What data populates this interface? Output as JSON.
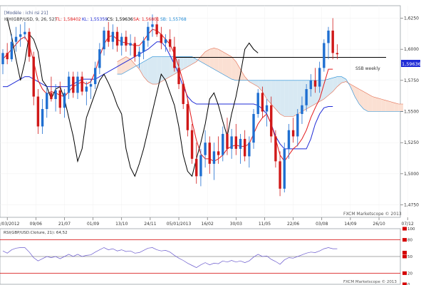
{
  "header": {
    "template_label": "[Modèle : ichi rsi 21]",
    "indicator_title": "ICH(GBP/USD, 9, 26, 52)",
    "tl": "TL: 1,58402",
    "kl": "KL: 1,55359",
    "cs": "CS: 1,59636",
    "sa": "SA: 1,56801",
    "sb": "SB: 1,55768",
    "tl_color": "#e31a1c",
    "kl_color": "#1f2bd6",
    "cs_color": "#000000",
    "sa_color": "#e31a1c",
    "sb_color": "#1f8bd6"
  },
  "price_axis": {
    "ticks": [
      "1,6250",
      "1,6000",
      "1,5750",
      "1,5500",
      "1,5250",
      "1,5000",
      "1,4750"
    ],
    "current_price_label": "1,59636"
  },
  "annotation": {
    "ssb_weekly": "SSB weekly"
  },
  "x_axis": {
    "labels": [
      "27/03/2012",
      "09/06",
      "21/07",
      "01/09",
      "13/10",
      "24/11",
      "05/01/2013",
      "16/02",
      "30/03",
      "11/05",
      "22/06",
      "03/08",
      "14/09",
      "26/10",
      "07/12"
    ]
  },
  "watermark": {
    "main": "FXCM Marketscope © 2013",
    "rsi": "FXCM Marketscope © 2013"
  },
  "rsi_panel": {
    "title": "RSI(GBP/USD.Cloture, 21): 64,52",
    "ticks": [
      "100",
      "80",
      "50",
      "20",
      "0"
    ],
    "current_value": "64,52"
  },
  "chart_data": {
    "type": "candlestick",
    "title": "ICH(GBP/USD, 9, 26, 52)",
    "ylim": [
      1.465,
      1.635
    ],
    "x_range_weeks": [
      0,
      91
    ],
    "price_levels": {
      "ssb_weekly": 1.5935
    },
    "current_price": 1.59636,
    "candles": [
      {
        "o": 1.588,
        "h": 1.6,
        "l": 1.58,
        "c": 1.597
      },
      {
        "o": 1.597,
        "h": 1.605,
        "l": 1.588,
        "c": 1.592
      },
      {
        "o": 1.592,
        "h": 1.612,
        "l": 1.59,
        "c": 1.606
      },
      {
        "o": 1.606,
        "h": 1.618,
        "l": 1.598,
        "c": 1.61
      },
      {
        "o": 1.61,
        "h": 1.62,
        "l": 1.602,
        "c": 1.612
      },
      {
        "o": 1.612,
        "h": 1.622,
        "l": 1.608,
        "c": 1.614
      },
      {
        "o": 1.614,
        "h": 1.617,
        "l": 1.59,
        "c": 1.594
      },
      {
        "o": 1.594,
        "h": 1.598,
        "l": 1.555,
        "c": 1.562
      },
      {
        "o": 1.562,
        "h": 1.568,
        "l": 1.532,
        "c": 1.538
      },
      {
        "o": 1.538,
        "h": 1.56,
        "l": 1.532,
        "c": 1.552
      },
      {
        "o": 1.552,
        "h": 1.57,
        "l": 1.545,
        "c": 1.565
      },
      {
        "o": 1.565,
        "h": 1.578,
        "l": 1.558,
        "c": 1.56
      },
      {
        "o": 1.56,
        "h": 1.572,
        "l": 1.55,
        "c": 1.567
      },
      {
        "o": 1.567,
        "h": 1.574,
        "l": 1.548,
        "c": 1.553
      },
      {
        "o": 1.553,
        "h": 1.568,
        "l": 1.545,
        "c": 1.565
      },
      {
        "o": 1.565,
        "h": 1.582,
        "l": 1.56,
        "c": 1.578
      },
      {
        "o": 1.578,
        "h": 1.582,
        "l": 1.561,
        "c": 1.565
      },
      {
        "o": 1.565,
        "h": 1.582,
        "l": 1.56,
        "c": 1.578
      },
      {
        "o": 1.578,
        "h": 1.582,
        "l": 1.563,
        "c": 1.566
      },
      {
        "o": 1.566,
        "h": 1.574,
        "l": 1.555,
        "c": 1.57
      },
      {
        "o": 1.57,
        "h": 1.576,
        "l": 1.56,
        "c": 1.572
      },
      {
        "o": 1.572,
        "h": 1.59,
        "l": 1.568,
        "c": 1.585
      },
      {
        "o": 1.585,
        "h": 1.605,
        "l": 1.58,
        "c": 1.6
      },
      {
        "o": 1.6,
        "h": 1.618,
        "l": 1.595,
        "c": 1.615
      },
      {
        "o": 1.615,
        "h": 1.622,
        "l": 1.602,
        "c": 1.606
      },
      {
        "o": 1.606,
        "h": 1.62,
        "l": 1.6,
        "c": 1.614
      },
      {
        "o": 1.614,
        "h": 1.618,
        "l": 1.598,
        "c": 1.603
      },
      {
        "o": 1.603,
        "h": 1.613,
        "l": 1.595,
        "c": 1.61
      },
      {
        "o": 1.61,
        "h": 1.615,
        "l": 1.598,
        "c": 1.603
      },
      {
        "o": 1.603,
        "h": 1.612,
        "l": 1.595,
        "c": 1.605
      },
      {
        "o": 1.605,
        "h": 1.61,
        "l": 1.59,
        "c": 1.594
      },
      {
        "o": 1.594,
        "h": 1.602,
        "l": 1.585,
        "c": 1.598
      },
      {
        "o": 1.598,
        "h": 1.61,
        "l": 1.592,
        "c": 1.607
      },
      {
        "o": 1.607,
        "h": 1.622,
        "l": 1.602,
        "c": 1.618
      },
      {
        "o": 1.618,
        "h": 1.628,
        "l": 1.61,
        "c": 1.62
      },
      {
        "o": 1.62,
        "h": 1.626,
        "l": 1.61,
        "c": 1.612
      },
      {
        "o": 1.612,
        "h": 1.618,
        "l": 1.6,
        "c": 1.605
      },
      {
        "o": 1.605,
        "h": 1.612,
        "l": 1.598,
        "c": 1.608
      },
      {
        "o": 1.608,
        "h": 1.616,
        "l": 1.598,
        "c": 1.602
      },
      {
        "o": 1.602,
        "h": 1.61,
        "l": 1.582,
        "c": 1.585
      },
      {
        "o": 1.585,
        "h": 1.592,
        "l": 1.568,
        "c": 1.572
      },
      {
        "o": 1.572,
        "h": 1.575,
        "l": 1.552,
        "c": 1.556
      },
      {
        "o": 1.556,
        "h": 1.56,
        "l": 1.53,
        "c": 1.535
      },
      {
        "o": 1.535,
        "h": 1.54,
        "l": 1.508,
        "c": 1.512
      },
      {
        "o": 1.512,
        "h": 1.525,
        "l": 1.492,
        "c": 1.498
      },
      {
        "o": 1.498,
        "h": 1.52,
        "l": 1.49,
        "c": 1.515
      },
      {
        "o": 1.515,
        "h": 1.535,
        "l": 1.505,
        "c": 1.525
      },
      {
        "o": 1.525,
        "h": 1.53,
        "l": 1.5,
        "c": 1.508
      },
      {
        "o": 1.508,
        "h": 1.525,
        "l": 1.495,
        "c": 1.518
      },
      {
        "o": 1.518,
        "h": 1.53,
        "l": 1.508,
        "c": 1.515
      },
      {
        "o": 1.515,
        "h": 1.538,
        "l": 1.51,
        "c": 1.532
      },
      {
        "o": 1.532,
        "h": 1.545,
        "l": 1.515,
        "c": 1.52
      },
      {
        "o": 1.52,
        "h": 1.536,
        "l": 1.512,
        "c": 1.53
      },
      {
        "o": 1.53,
        "h": 1.54,
        "l": 1.515,
        "c": 1.52
      },
      {
        "o": 1.52,
        "h": 1.532,
        "l": 1.508,
        "c": 1.528
      },
      {
        "o": 1.528,
        "h": 1.535,
        "l": 1.51,
        "c": 1.514
      },
      {
        "o": 1.514,
        "h": 1.53,
        "l": 1.505,
        "c": 1.525
      },
      {
        "o": 1.525,
        "h": 1.552,
        "l": 1.52,
        "c": 1.548
      },
      {
        "o": 1.548,
        "h": 1.568,
        "l": 1.545,
        "c": 1.565
      },
      {
        "o": 1.565,
        "h": 1.57,
        "l": 1.545,
        "c": 1.55
      },
      {
        "o": 1.55,
        "h": 1.56,
        "l": 1.538,
        "c": 1.555
      },
      {
        "o": 1.555,
        "h": 1.562,
        "l": 1.525,
        "c": 1.53
      },
      {
        "o": 1.53,
        "h": 1.535,
        "l": 1.505,
        "c": 1.51
      },
      {
        "o": 1.51,
        "h": 1.518,
        "l": 1.482,
        "c": 1.488
      },
      {
        "o": 1.488,
        "h": 1.525,
        "l": 1.485,
        "c": 1.52
      },
      {
        "o": 1.52,
        "h": 1.54,
        "l": 1.512,
        "c": 1.535
      },
      {
        "o": 1.535,
        "h": 1.545,
        "l": 1.525,
        "c": 1.53
      },
      {
        "o": 1.53,
        "h": 1.552,
        "l": 1.522,
        "c": 1.548
      },
      {
        "o": 1.548,
        "h": 1.562,
        "l": 1.54,
        "c": 1.555
      },
      {
        "o": 1.555,
        "h": 1.572,
        "l": 1.55,
        "c": 1.568
      },
      {
        "o": 1.568,
        "h": 1.58,
        "l": 1.562,
        "c": 1.575
      },
      {
        "o": 1.575,
        "h": 1.585,
        "l": 1.565,
        "c": 1.57
      },
      {
        "o": 1.57,
        "h": 1.59,
        "l": 1.565,
        "c": 1.585
      },
      {
        "o": 1.585,
        "h": 1.608,
        "l": 1.582,
        "c": 1.605
      },
      {
        "o": 1.605,
        "h": 1.618,
        "l": 1.592,
        "c": 1.615
      },
      {
        "o": 1.615,
        "h": 1.625,
        "l": 1.592,
        "c": 1.597
      },
      {
        "o": 1.597,
        "h": 1.604,
        "l": 1.592,
        "c": 1.596
      }
    ],
    "tenkan": [
      1.592,
      1.596,
      1.6,
      1.604,
      1.608,
      1.61,
      1.604,
      1.59,
      1.575,
      1.568,
      1.564,
      1.566,
      1.565,
      1.563,
      1.562,
      1.566,
      1.57,
      1.572,
      1.574,
      1.572,
      1.574,
      1.582,
      1.594,
      1.604,
      1.61,
      1.611,
      1.608,
      1.606,
      1.605,
      1.604,
      1.603,
      1.603,
      1.607,
      1.612,
      1.616,
      1.615,
      1.612,
      1.608,
      1.604,
      1.596,
      1.586,
      1.574,
      1.56,
      1.542,
      1.527,
      1.516,
      1.512,
      1.512,
      1.51,
      1.512,
      1.515,
      1.52,
      1.522,
      1.523,
      1.522,
      1.522,
      1.524,
      1.532,
      1.54,
      1.545,
      1.548,
      1.54,
      1.528,
      1.515,
      1.51,
      1.515,
      1.52,
      1.523,
      1.528,
      1.535,
      1.545,
      1.553,
      1.56,
      1.572,
      1.584,
      1.584
    ],
    "kijun": [
      1.57,
      1.57,
      1.572,
      1.574,
      1.576,
      1.578,
      1.578,
      1.576,
      1.574,
      1.572,
      1.57,
      1.57,
      1.57,
      1.57,
      1.57,
      1.57,
      1.572,
      1.574,
      1.576,
      1.576,
      1.576,
      1.576,
      1.578,
      1.58,
      1.582,
      1.584,
      1.586,
      1.588,
      1.59,
      1.592,
      1.594,
      1.596,
      1.598,
      1.6,
      1.603,
      1.606,
      1.606,
      1.602,
      1.595,
      1.588,
      1.58,
      1.57,
      1.562,
      1.558,
      1.556,
      1.556,
      1.556,
      1.556,
      1.556,
      1.556,
      1.556,
      1.556,
      1.556,
      1.556,
      1.556,
      1.556,
      1.556,
      1.556,
      1.555,
      1.552,
      1.548,
      1.54,
      1.53,
      1.524,
      1.52,
      1.52,
      1.52,
      1.52,
      1.52,
      1.52,
      1.528,
      1.54,
      1.548,
      1.553,
      1.554,
      1.554
    ],
    "chikou_start": 1,
    "chikou": [
      1.625,
      1.61,
      1.592,
      1.575,
      1.59,
      1.612,
      1.608,
      1.598,
      1.575,
      1.57,
      1.56,
      1.568,
      1.57,
      1.56,
      1.545,
      1.53,
      1.51,
      1.52,
      1.545,
      1.555,
      1.565,
      1.575,
      1.58,
      1.573,
      1.565,
      1.555,
      1.548,
      1.52,
      1.505,
      1.498,
      1.508,
      1.52,
      1.535,
      1.55,
      1.565,
      1.58,
      1.575,
      1.565,
      1.555,
      1.538,
      1.515,
      1.502,
      1.498,
      1.512,
      1.525,
      1.54,
      1.56,
      1.565,
      1.555,
      1.542,
      1.53,
      1.548,
      1.562,
      1.58,
      1.6,
      1.605,
      1.6,
      1.597
    ],
    "senkou_start": 26,
    "senkou_a": [
      1.59,
      1.592,
      1.594,
      1.592,
      1.588,
      1.584,
      1.578,
      1.574,
      1.572,
      1.572,
      1.574,
      1.576,
      1.578,
      1.58,
      1.582,
      1.584,
      1.586,
      1.588,
      1.59,
      1.594,
      1.598,
      1.6,
      1.601,
      1.6,
      1.598,
      1.596,
      1.594,
      1.59,
      1.584,
      1.578,
      1.574,
      1.572,
      1.57,
      1.566,
      1.56,
      1.556,
      1.552,
      1.548,
      1.546,
      1.546,
      1.546,
      1.548,
      1.55,
      1.552,
      1.554,
      1.556,
      1.558,
      1.56,
      1.563,
      1.566,
      1.57,
      1.573,
      1.574,
      1.572,
      1.57,
      1.568,
      1.566,
      1.564,
      1.562,
      1.561,
      1.56,
      1.559,
      1.558,
      1.557,
      1.556,
      1.556
    ],
    "senkou_b": [
      1.58,
      1.58,
      1.582,
      1.584,
      1.586,
      1.588,
      1.59,
      1.592,
      1.594,
      1.594,
      1.594,
      1.594,
      1.594,
      1.594,
      1.594,
      1.594,
      1.594,
      1.594,
      1.592,
      1.59,
      1.588,
      1.586,
      1.584,
      1.582,
      1.58,
      1.578,
      1.576,
      1.575,
      1.575,
      1.575,
      1.575,
      1.575,
      1.575,
      1.575,
      1.575,
      1.575,
      1.575,
      1.575,
      1.575,
      1.575,
      1.575,
      1.575,
      1.575,
      1.575,
      1.575,
      1.575,
      1.575,
      1.575,
      1.576,
      1.577,
      1.578,
      1.578,
      1.576,
      1.57,
      1.562,
      1.556,
      1.552,
      1.55,
      1.55,
      1.55,
      1.55,
      1.55,
      1.55,
      1.55,
      1.55,
      1.55
    ],
    "rsi": {
      "ylim": [
        0,
        100
      ],
      "levels": [
        20,
        50,
        80
      ],
      "current": 64.52,
      "values": [
        60,
        56,
        62,
        65,
        66,
        66,
        58,
        48,
        42,
        46,
        50,
        48,
        50,
        46,
        50,
        54,
        50,
        54,
        50,
        52,
        53,
        58,
        62,
        66,
        62,
        64,
        60,
        62,
        59,
        60,
        56,
        57,
        61,
        65,
        66,
        62,
        60,
        61,
        58,
        52,
        47,
        43,
        38,
        34,
        30,
        35,
        39,
        35,
        38,
        37,
        42,
        40,
        43,
        40,
        42,
        39,
        42,
        49,
        54,
        50,
        51,
        45,
        41,
        36,
        44,
        48,
        47,
        50,
        53,
        56,
        58,
        57,
        60,
        64,
        66,
        64,
        64
      ]
    }
  }
}
